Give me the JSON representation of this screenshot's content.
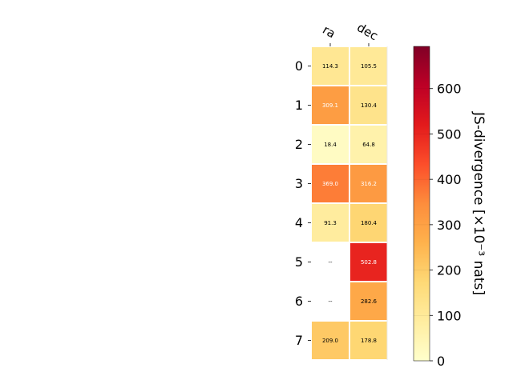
{
  "chart_data": {
    "type": "heatmap",
    "columns": [
      "ra",
      "dec"
    ],
    "rows": [
      "0",
      "1",
      "2",
      "3",
      "4",
      "5",
      "6",
      "7"
    ],
    "values": [
      [
        114.3,
        105.5
      ],
      [
        309.1,
        130.4
      ],
      [
        18.4,
        64.8
      ],
      [
        369.0,
        316.2
      ],
      [
        91.3,
        180.4
      ],
      [
        null,
        502.8
      ],
      [
        null,
        282.6
      ],
      [
        209.0,
        178.8
      ]
    ],
    "cell_labels": [
      [
        "114.3",
        "105.5"
      ],
      [
        "309.1",
        "130.4"
      ],
      [
        "18.4",
        "64.8"
      ],
      [
        "369.0",
        "316.2"
      ],
      [
        "91.3",
        "180.4"
      ],
      [
        "--",
        "502.8"
      ],
      [
        "--",
        "282.6"
      ],
      [
        "209.0",
        "178.8"
      ]
    ],
    "missing_label": "--",
    "colorbar": {
      "label": "JS-divergence [×10⁻³ nats]",
      "range": [
        0,
        693
      ],
      "ticks": [
        0,
        100,
        200,
        300,
        400,
        500,
        600
      ],
      "tick_labels": [
        "0",
        "100",
        "200",
        "300",
        "400",
        "500",
        "600"
      ],
      "colormap": "YlOrRd"
    },
    "colors": {
      "colormap_stops": [
        "#ffffcc",
        "#ffeda0",
        "#fed976",
        "#feb24c",
        "#fd8d3c",
        "#fc4e2a",
        "#e31a1c",
        "#bd0026",
        "#800026"
      ],
      "grid_line": "#ffffff",
      "text_dark": "#000000",
      "text_light": "#ffffff"
    }
  }
}
